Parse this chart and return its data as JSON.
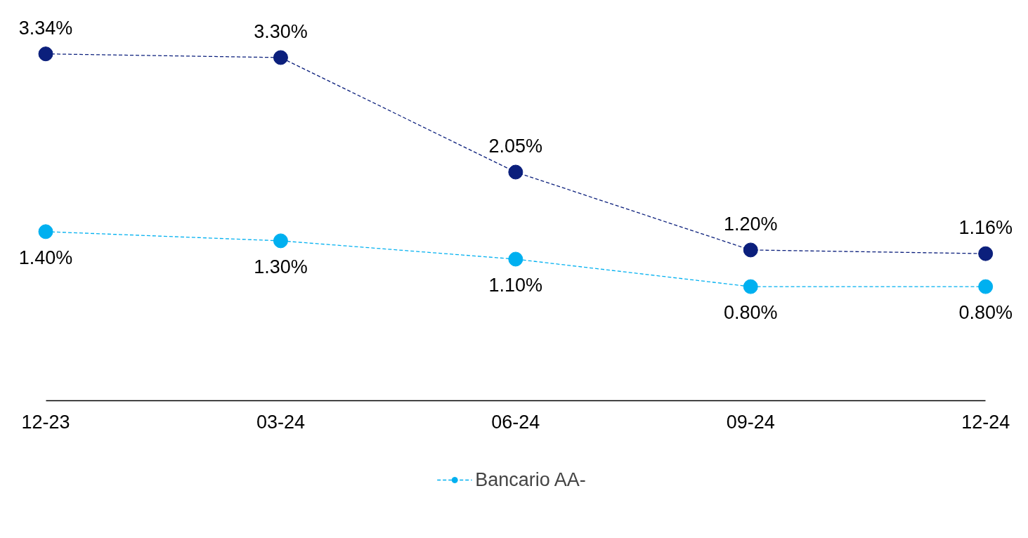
{
  "chart_data": {
    "type": "line",
    "categories": [
      "12-23",
      "03-24",
      "06-24",
      "09-24",
      "12-24"
    ],
    "series": [
      {
        "color": "#0b1f7c",
        "values": [
          3.34,
          3.3,
          2.05,
          1.2,
          1.16
        ],
        "value_labels": [
          "3.34%",
          "3.30%",
          "2.05%",
          "1.20%",
          "1.16%"
        ]
      },
      {
        "name": "Bancario AA-",
        "color": "#00b0f0",
        "values": [
          1.4,
          1.3,
          1.1,
          0.8,
          0.8
        ],
        "value_labels": [
          "1.40%",
          "1.30%",
          "1.10%",
          "0.80%",
          "0.80%"
        ]
      }
    ],
    "marker": "circle",
    "line_style": "dashed",
    "grid": false,
    "legend": "bottom",
    "tick_labels": "x"
  }
}
